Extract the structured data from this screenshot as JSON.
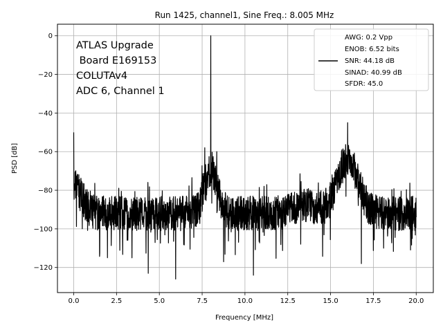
{
  "chart_data": {
    "type": "line",
    "title": "Run 1425, channel1, Sine Freq.: 8.005 MHz",
    "xlabel": "Frequency [MHz]",
    "ylabel": "PSD [dB]",
    "xlim": [
      -0.95,
      21.0
    ],
    "ylim": [
      -133,
      6
    ],
    "xticks": [
      0.0,
      2.5,
      5.0,
      7.5,
      10.0,
      12.5,
      15.0,
      17.5,
      20.0
    ],
    "xtick_labels": [
      "0.0",
      "2.5",
      "5.0",
      "7.5",
      "10.0",
      "12.5",
      "15.0",
      "17.5",
      "20.0"
    ],
    "yticks": [
      0,
      -20,
      -40,
      -60,
      -80,
      -100,
      -120
    ],
    "ytick_labels": [
      "0",
      "−20",
      "−40",
      "−60",
      "−80",
      "−100",
      "−120"
    ],
    "grid": true,
    "line_color": "#000000",
    "annotation_lines": [
      "ATLAS Upgrade",
      " Board E169153",
      "COLUTAv4",
      "ADC 6, Channel 1"
    ],
    "legend": {
      "placement": "upper right",
      "lines": [
        "AWG: 0.2 Vpp",
        "ENOB: 6.52 bits",
        "SNR: 44.18 dB",
        "SINAD: 40.99 dB",
        "SFDR: 45.0"
      ]
    },
    "series": [
      {
        "x_range": [
          0.0,
          20.0
        ],
        "num_points": 2000,
        "floor_db": -92,
        "noise_spread_db": 9,
        "spurs": [
          {
            "x": 0.0,
            "y": -50
          },
          {
            "x": 7.65,
            "y": -58
          },
          {
            "x": 8.005,
            "y": 0
          },
          {
            "x": 8.35,
            "y": -60
          },
          {
            "x": 16.0,
            "y": -45
          }
        ],
        "dips": [
          {
            "x": 4.35,
            "y": -123
          },
          {
            "x": 5.95,
            "y": -126
          },
          {
            "x": 8.75,
            "y": -117
          },
          {
            "x": 10.5,
            "y": -124
          },
          {
            "x": 3.4,
            "y": -115
          },
          {
            "x": 16.8,
            "y": -118
          },
          {
            "x": 18.1,
            "y": -110
          }
        ]
      }
    ]
  }
}
